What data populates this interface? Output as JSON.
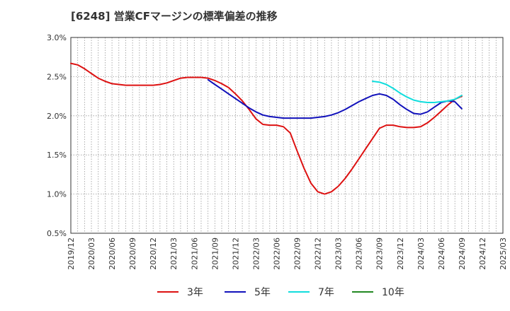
{
  "title": "[6248]  営業CFマージンの標準偏差の推移",
  "chart_data": {
    "type": "line",
    "y_unit": "%",
    "ylim": [
      0.5,
      3.0
    ],
    "yticks": [
      "0.5%",
      "1.0%",
      "1.5%",
      "2.0%",
      "2.5%",
      "3.0%"
    ],
    "yticks_values": [
      0.5,
      1.0,
      1.5,
      2.0,
      2.5,
      3.0
    ],
    "x_range": [
      "2019-12",
      "2025-03"
    ],
    "xticks": [
      "2019/12",
      "2020/03",
      "2020/06",
      "2020/09",
      "2020/12",
      "2021/03",
      "2021/06",
      "2021/09",
      "2021/12",
      "2022/03",
      "2022/06",
      "2022/09",
      "2022/12",
      "2023/03",
      "2023/06",
      "2023/09",
      "2023/12",
      "2024/03",
      "2024/06",
      "2024/09",
      "2024/12",
      "2025/03"
    ],
    "grid": "dotted",
    "legend_position": "bottom",
    "series": [
      {
        "name": "3年",
        "color": "#dd1111",
        "x": [
          "2019-12",
          "2020-01",
          "2020-02",
          "2020-03",
          "2020-04",
          "2020-05",
          "2020-06",
          "2020-07",
          "2020-08",
          "2020-09",
          "2020-10",
          "2020-11",
          "2020-12",
          "2021-01",
          "2021-02",
          "2021-03",
          "2021-04",
          "2021-05",
          "2021-06",
          "2021-07",
          "2021-08",
          "2021-09",
          "2021-10",
          "2021-11",
          "2021-12",
          "2022-01",
          "2022-02",
          "2022-03",
          "2022-04",
          "2022-05",
          "2022-06",
          "2022-07",
          "2022-08",
          "2022-09",
          "2022-10",
          "2022-11",
          "2022-12",
          "2023-01",
          "2023-02",
          "2023-03",
          "2023-04",
          "2023-05",
          "2023-06",
          "2023-07",
          "2023-08",
          "2023-09",
          "2023-10",
          "2023-11",
          "2023-12",
          "2024-01",
          "2024-02",
          "2024-03",
          "2024-04",
          "2024-05",
          "2024-06",
          "2024-07",
          "2024-08",
          "2024-09"
        ],
        "values": [
          2.67,
          2.65,
          2.6,
          2.54,
          2.48,
          2.44,
          2.41,
          2.4,
          2.39,
          2.39,
          2.39,
          2.39,
          2.39,
          2.4,
          2.42,
          2.45,
          2.48,
          2.49,
          2.49,
          2.49,
          2.48,
          2.45,
          2.41,
          2.36,
          2.28,
          2.19,
          2.08,
          1.96,
          1.89,
          1.88,
          1.88,
          1.86,
          1.78,
          1.55,
          1.33,
          1.14,
          1.03,
          1.0,
          1.03,
          1.1,
          1.2,
          1.32,
          1.45,
          1.58,
          1.71,
          1.84,
          1.88,
          1.88,
          1.86,
          1.85,
          1.85,
          1.86,
          1.91,
          1.98,
          2.06,
          2.14,
          2.21,
          2.25
        ]
      },
      {
        "name": "5年",
        "color": "#1111bb",
        "x": [
          "2021-08",
          "2021-09",
          "2021-10",
          "2021-11",
          "2021-12",
          "2022-01",
          "2022-02",
          "2022-03",
          "2022-04",
          "2022-05",
          "2022-06",
          "2022-07",
          "2022-08",
          "2022-09",
          "2022-10",
          "2022-11",
          "2022-12",
          "2023-01",
          "2023-02",
          "2023-03",
          "2023-04",
          "2023-05",
          "2023-06",
          "2023-07",
          "2023-08",
          "2023-09",
          "2023-10",
          "2023-11",
          "2023-12",
          "2024-01",
          "2024-02",
          "2024-03",
          "2024-04",
          "2024-05",
          "2024-06",
          "2024-07",
          "2024-08",
          "2024-09"
        ],
        "values": [
          2.46,
          2.4,
          2.34,
          2.28,
          2.22,
          2.16,
          2.1,
          2.05,
          2.01,
          1.99,
          1.98,
          1.97,
          1.97,
          1.97,
          1.97,
          1.97,
          1.98,
          1.99,
          2.01,
          2.04,
          2.08,
          2.13,
          2.18,
          2.22,
          2.26,
          2.28,
          2.26,
          2.21,
          2.14,
          2.08,
          2.03,
          2.02,
          2.05,
          2.11,
          2.17,
          2.19,
          2.18,
          2.09
        ]
      },
      {
        "name": "7年",
        "color": "#11dddd",
        "x": [
          "2023-08",
          "2023-09",
          "2023-10",
          "2023-11",
          "2023-12",
          "2024-01",
          "2024-02",
          "2024-03",
          "2024-04",
          "2024-05",
          "2024-06",
          "2024-07",
          "2024-08",
          "2024-09"
        ],
        "values": [
          2.44,
          2.43,
          2.4,
          2.35,
          2.29,
          2.24,
          2.2,
          2.18,
          2.17,
          2.17,
          2.18,
          2.19,
          2.21,
          2.26
        ]
      },
      {
        "name": "10年",
        "color": "#228822",
        "x": [],
        "values": []
      }
    ]
  }
}
